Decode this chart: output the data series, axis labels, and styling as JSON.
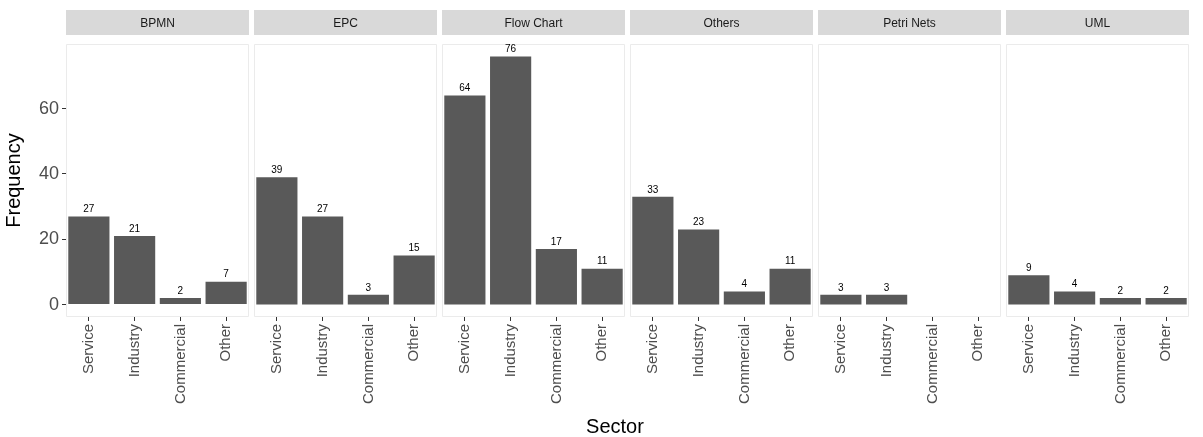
{
  "chart_data": [
    {
      "type": "bar",
      "title": "BPMN",
      "ylabel": "Frequency",
      "categories": [
        "Service",
        "Industry",
        "Commercial",
        "Other"
      ],
      "values": [
        27,
        21,
        2,
        7
      ],
      "color": "#595959",
      "ylim": [
        -3.8,
        79.8
      ],
      "yticks": [
        0,
        20,
        40,
        60
      ],
      "data_labels": true
    },
    {
      "type": "bar",
      "title": "EPC",
      "categories": [
        "Service",
        "Industry",
        "Commercial",
        "Other"
      ],
      "values": [
        39,
        27,
        3,
        15
      ],
      "color": "#595959",
      "ylim": [
        -3.8,
        79.8
      ],
      "yticks": [
        0,
        20,
        40,
        60
      ],
      "data_labels": true,
      "tick_labels": "x"
    },
    {
      "type": "bar",
      "title": "Flow Chart",
      "xlabel": "Sector",
      "categories": [
        "Service",
        "Industry",
        "Commercial",
        "Other"
      ],
      "values": [
        64,
        76,
        17,
        11
      ],
      "color": "#595959",
      "ylim": [
        -3.8,
        79.8
      ],
      "yticks": [
        0,
        20,
        40,
        60
      ],
      "data_labels": true,
      "tick_labels": "x"
    },
    {
      "type": "bar",
      "title": "Others",
      "categories": [
        "Service",
        "Industry",
        "Commercial",
        "Other"
      ],
      "values": [
        33,
        23,
        4,
        11
      ],
      "color": "#595959",
      "ylim": [
        -3.8,
        79.8
      ],
      "yticks": [
        0,
        20,
        40,
        60
      ],
      "data_labels": true,
      "tick_labels": "x"
    },
    {
      "type": "bar",
      "title": "Petri Nets",
      "categories": [
        "Service",
        "Industry",
        "Commercial",
        "Other"
      ],
      "values": [
        3,
        3,
        null,
        null
      ],
      "color": "#595959",
      "ylim": [
        -3.8,
        79.8
      ],
      "yticks": [
        0,
        20,
        40,
        60
      ],
      "data_labels": true,
      "tick_labels": "x"
    },
    {
      "type": "bar",
      "title": "UML",
      "categories": [
        "Service",
        "Industry",
        "Commercial",
        "Other"
      ],
      "values": [
        9,
        4,
        2,
        2
      ],
      "color": "#595959",
      "ylim": [
        -3.8,
        79.8
      ],
      "yticks": [
        0,
        20,
        40,
        60
      ],
      "data_labels": true,
      "tick_labels": "x"
    }
  ]
}
